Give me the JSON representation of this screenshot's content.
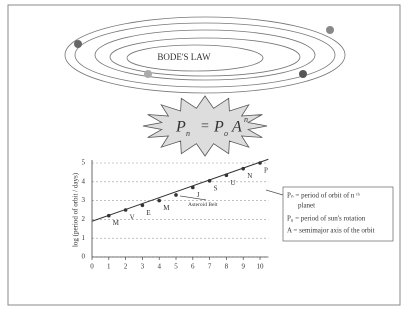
{
  "diagram": {
    "title": "BODE'S LAW",
    "formula": [
      "P",
      "n",
      "=",
      "P",
      "o",
      "A",
      "n"
    ],
    "legend": [
      "Pₙ = period of orbit of n ᵗʰ",
      "planet",
      "P₀ = period of sun's rotation",
      "A = semimajor axis of the orbit"
    ]
  },
  "chart_data": {
    "type": "scatter",
    "y_label": "log (period of orbit / days)",
    "x": [
      1,
      2,
      3,
      4,
      5,
      6,
      7,
      8,
      9,
      10
    ],
    "values": [
      2.2,
      2.5,
      2.75,
      3.0,
      3.3,
      3.7,
      4.05,
      4.35,
      4.7,
      5.0
    ],
    "point_labels": [
      "M",
      "V",
      "E",
      "M",
      null,
      "J",
      "S",
      "U",
      "N",
      "P"
    ],
    "annotation": "Asteroid Belt",
    "trend": {
      "x": [
        0,
        10.5
      ],
      "y": [
        1.9,
        5.2
      ]
    },
    "color": "#333333",
    "xlim": [
      0,
      10.5
    ],
    "ylim": [
      0,
      5
    ],
    "xticks": [
      0,
      1,
      2,
      3,
      4,
      5,
      6,
      7,
      8,
      9,
      10
    ],
    "yticks": [
      0,
      1,
      2,
      3,
      4,
      5
    ],
    "grid": true
  }
}
